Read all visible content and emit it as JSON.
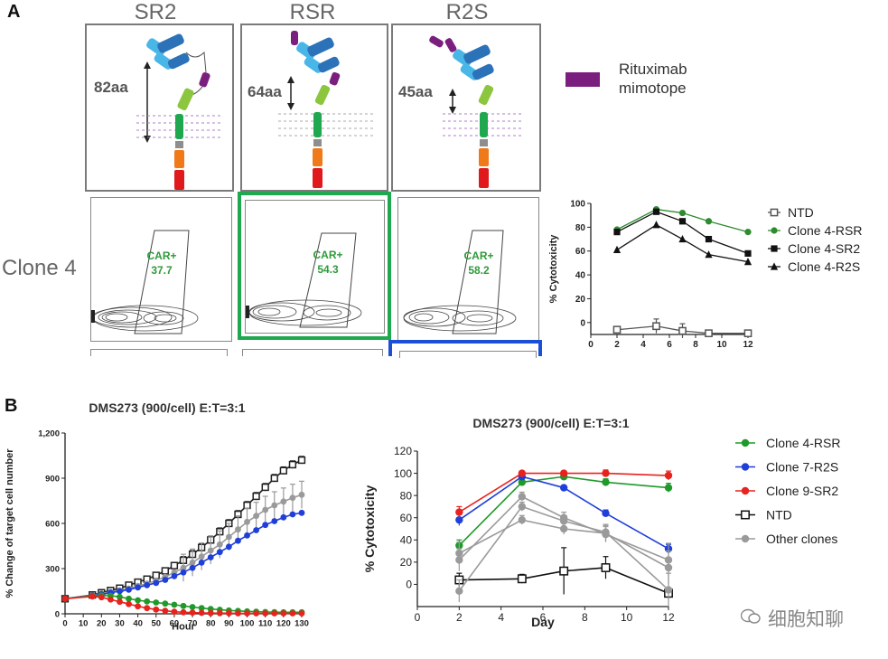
{
  "panel_a": {
    "letter": "A",
    "headers": [
      "SR2",
      "RSR",
      "R2S"
    ],
    "linker_lengths": [
      "82aa",
      "64aa",
      "45aa"
    ],
    "legend_mimotope": [
      "Rituximab",
      "mimotope"
    ],
    "row_label": "Clone 4",
    "gate_label": "CAR+",
    "gate_values": [
      "37.7",
      "54.3",
      "58.2"
    ],
    "colors": {
      "mimotope": "#7b1f7e",
      "highlight_green": "#1fa84f",
      "highlight_blue": "#1c4fd8"
    }
  },
  "panel_b": {
    "letter": "B"
  },
  "watermark": "细胞知聊",
  "chart_data": [
    {
      "id": "a_cytotoxicity",
      "type": "line",
      "title": "",
      "xlabel": "",
      "ylabel": "% Cytotoxicity",
      "xlim": [
        0,
        12
      ],
      "ylim": [
        -10,
        100
      ],
      "xticks": [
        0,
        2,
        4,
        6,
        8,
        10,
        12
      ],
      "yticks": [
        0,
        20,
        40,
        60,
        80,
        100
      ],
      "x": [
        2,
        5,
        7,
        9,
        12
      ],
      "series": [
        {
          "name": "NTD",
          "marker": "open-square",
          "color": "#555555",
          "values": [
            -6,
            -3,
            -7,
            -9,
            -9
          ]
        },
        {
          "name": "Clone 4-RSR",
          "marker": "circle",
          "color": "#2e8b2e",
          "values": [
            78,
            95,
            92,
            85,
            76
          ]
        },
        {
          "name": "Clone 4-SR2",
          "marker": "square",
          "color": "#111111",
          "values": [
            76,
            93,
            85,
            70,
            58
          ]
        },
        {
          "name": "Clone 4-R2S",
          "marker": "triangle",
          "color": "#111111",
          "values": [
            61,
            82,
            70,
            57,
            51
          ]
        }
      ]
    },
    {
      "id": "b_growth",
      "type": "line",
      "title": "DMS273 (900/cell) E:T=3:1",
      "xlabel": "Hour",
      "ylabel": "% Change of target cell number",
      "xlim": [
        0,
        130
      ],
      "ylim": [
        0,
        1200
      ],
      "xticks": [
        0,
        10,
        20,
        30,
        40,
        50,
        60,
        70,
        80,
        90,
        100,
        110,
        120,
        130
      ],
      "ytick_labels": [
        "0",
        "300",
        "600",
        "900",
        "1,200"
      ],
      "yticks": [
        0,
        300,
        600,
        900,
        1200
      ],
      "x": [
        0,
        15,
        20,
        25,
        30,
        35,
        40,
        45,
        50,
        55,
        60,
        65,
        70,
        75,
        80,
        85,
        90,
        95,
        100,
        105,
        110,
        115,
        120,
        125,
        130
      ],
      "series": [
        {
          "name": "NTD",
          "color": "#222222",
          "marker": "open-square",
          "values": [
            100,
            125,
            140,
            155,
            170,
            190,
            210,
            230,
            255,
            285,
            320,
            355,
            395,
            440,
            490,
            545,
            600,
            660,
            720,
            780,
            840,
            900,
            950,
            990,
            1020
          ]
        },
        {
          "name": "Other clones",
          "color": "#9a9a9a",
          "marker": "circle",
          "values": [
            100,
            122,
            135,
            145,
            155,
            168,
            185,
            200,
            220,
            245,
            275,
            305,
            340,
            380,
            420,
            460,
            510,
            560,
            610,
            650,
            690,
            720,
            745,
            770,
            790
          ]
        },
        {
          "name": "Clone 7-R2S",
          "color": "#1f3fd8",
          "marker": "circle",
          "values": [
            100,
            120,
            130,
            140,
            150,
            160,
            175,
            190,
            205,
            225,
            250,
            275,
            305,
            340,
            375,
            410,
            445,
            485,
            520,
            555,
            590,
            615,
            640,
            660,
            670
          ]
        },
        {
          "name": "Clone 4-RSR",
          "color": "#1f9a2a",
          "marker": "circle",
          "values": [
            100,
            118,
            122,
            120,
            112,
            100,
            90,
            82,
            75,
            68,
            60,
            52,
            45,
            38,
            32,
            27,
            22,
            19,
            16,
            14,
            12,
            11,
            10,
            10,
            10
          ]
        },
        {
          "name": "Clone 9-SR2",
          "color": "#e8221c",
          "marker": "circle",
          "values": [
            100,
            115,
            110,
            95,
            80,
            65,
            50,
            38,
            28,
            20,
            14,
            10,
            8,
            6,
            5,
            4,
            4,
            3,
            3,
            3,
            3,
            3,
            3,
            3,
            3
          ]
        }
      ]
    },
    {
      "id": "b_cytotoxicity",
      "type": "line",
      "title": "DMS273 (900/cell) E:T=3:1",
      "xlabel": "Day",
      "ylabel": "% Cytotoxicity",
      "xlim": [
        0,
        12
      ],
      "ylim": [
        -20,
        120
      ],
      "xticks": [
        0,
        2,
        4,
        6,
        8,
        10,
        12
      ],
      "yticks": [
        0,
        20,
        40,
        60,
        80,
        100,
        120
      ],
      "x": [
        2,
        5,
        7,
        9,
        12
      ],
      "series": [
        {
          "name": "Clone 4-RSR",
          "color": "#1f9a2a",
          "marker": "circle",
          "values": [
            35,
            92,
            97,
            92,
            87
          ]
        },
        {
          "name": "Clone 7-R2S",
          "color": "#1f3fd8",
          "marker": "circle",
          "values": [
            58,
            97,
            87,
            64,
            32
          ]
        },
        {
          "name": "Clone 9-SR2",
          "color": "#e8221c",
          "marker": "circle",
          "values": [
            65,
            100,
            100,
            100,
            98
          ]
        },
        {
          "name": "NTD",
          "color": "#111111",
          "marker": "open-square",
          "values": [
            4,
            5,
            12,
            15,
            -8
          ]
        },
        {
          "name": "Other clones",
          "color": "#9a9a9a",
          "marker": "circle",
          "values": [
            22,
            79,
            60,
            45,
            22
          ]
        },
        {
          "name": "Other clones",
          "color": "#9a9a9a",
          "marker": "circle",
          "values": [
            -6,
            70,
            57,
            47,
            -5
          ],
          "in_legend": false
        },
        {
          "name": "Other clones",
          "color": "#9a9a9a",
          "marker": "circle",
          "values": [
            28,
            58,
            50,
            46,
            15
          ],
          "in_legend": false
        }
      ]
    }
  ]
}
